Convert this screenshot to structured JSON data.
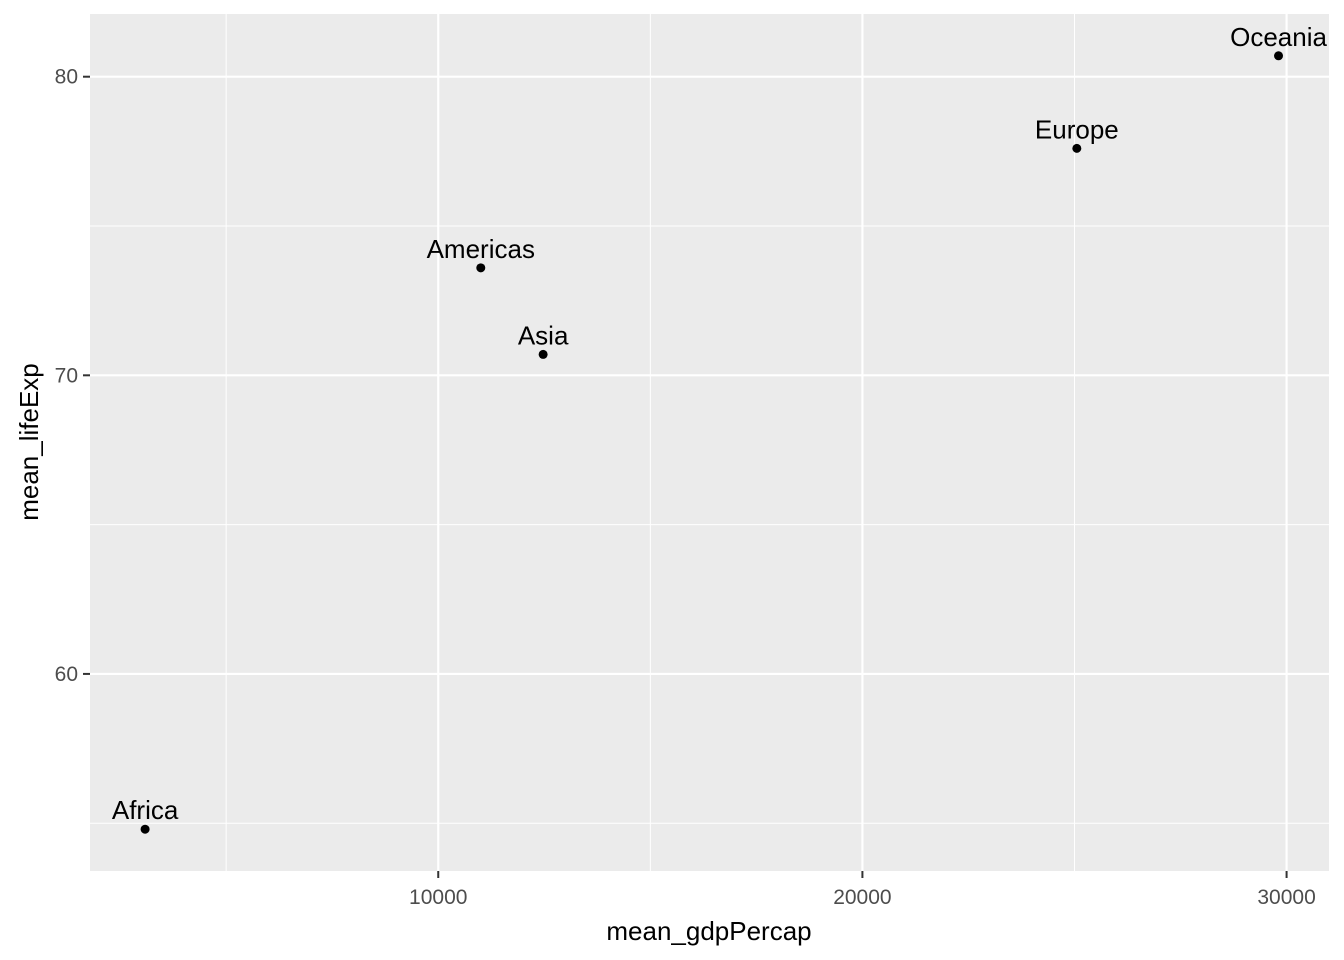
{
  "chart_data": {
    "type": "scatter",
    "title": "",
    "xlabel": "mean_gdpPercap",
    "ylabel": "mean_lifeExp",
    "xlim": [
      1790,
      31000
    ],
    "ylim": [
      53.4,
      82.1
    ],
    "x_ticks": [
      10000,
      20000,
      30000
    ],
    "x_tick_labels": [
      "10000",
      "20000",
      "30000"
    ],
    "x_minor_ticks": [
      5000,
      15000,
      25000
    ],
    "y_ticks": [
      60,
      70,
      80
    ],
    "y_tick_labels": [
      "60",
      "70",
      "80"
    ],
    "y_minor_ticks": [
      55,
      65,
      75
    ],
    "grid": true,
    "panel_background": "#ebebeb",
    "grid_color": "#ffffff",
    "point_color": "#000000",
    "points": [
      {
        "label": "Africa",
        "x": 3089,
        "y": 54.8
      },
      {
        "label": "Americas",
        "x": 11003,
        "y": 73.6
      },
      {
        "label": "Asia",
        "x": 12473,
        "y": 70.7
      },
      {
        "label": "Europe",
        "x": 25055,
        "y": 77.6
      },
      {
        "label": "Oceania",
        "x": 29810,
        "y": 80.7
      }
    ]
  }
}
